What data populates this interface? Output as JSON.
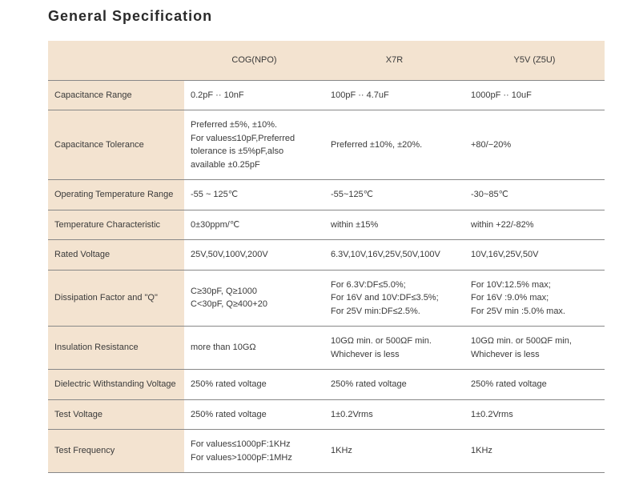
{
  "title": "General Specification",
  "colors": {
    "header_bg": "#f3e3d0",
    "border": "#888888",
    "text": "#3a3a3a",
    "page_bg": "#ffffff"
  },
  "columns": {
    "blank": "",
    "c1": "COG(NPO)",
    "c2": "X7R",
    "c3": "Y5V (Z5U)"
  },
  "rows": {
    "cap_range": {
      "label": "Capacitance Range",
      "c1": "0.2pF ·· 10nF",
      "c2": "100pF ·· 4.7uF",
      "c3": "1000pF ·· 10uF"
    },
    "cap_tol": {
      "label": "Capacitance Tolerance",
      "c1": "Preferred ±5%, ±10%.\nFor values≤10pF,Preferred\ntolerance is ±5%pF,also\navailable ±0.25pF",
      "c2": "Preferred ±10%, ±20%.",
      "c3": "+80/−20%"
    },
    "op_temp": {
      "label": "Operating Temperature Range",
      "c1": "-55 ~ 125℃",
      "c2": "-55~125℃",
      "c3": "-30~85℃"
    },
    "temp_char": {
      "label": "Temperature Characteristic",
      "c1": "0±30ppm/℃",
      "c2": "within ±15%",
      "c3": "within +22/-82%"
    },
    "rated_v": {
      "label": "Rated Voltage",
      "c1": "25V,50V,100V,200V",
      "c2": "6.3V,10V,16V,25V,50V,100V",
      "c3": "10V,16V,25V,50V"
    },
    "diss": {
      "label": "Dissipation Factor and \"Q\"",
      "c1": "C≥30pF, Q≥1000\nC<30pF, Q≥400+20",
      "c2": "For 6.3V:DF≤5.0%;\nFor 16V and 10V:DF≤3.5%;\nFor 25V min:DF≤2.5%.",
      "c3": "For 10V:12.5% max;\nFor 16V :9.0% max;\nFor 25V min :5.0% max."
    },
    "ins_res": {
      "label": "Insulation Resistance",
      "c1": "more than 10GΩ",
      "c2": "10GΩ min. or 500ΩF min.\nWhichever is less",
      "c3": "10GΩ min. or 500ΩF min,\nWhichever is less"
    },
    "diel": {
      "label": "Dielectric Withstanding Voltage",
      "c1": "250% rated voltage",
      "c2": "250% rated voltage",
      "c3": "250% rated voltage"
    },
    "test_v": {
      "label": "Test Voltage",
      "c1": "250% rated voltage",
      "c2": "1±0.2Vrms",
      "c3": "1±0.2Vrms"
    },
    "test_f": {
      "label": "Test Frequency",
      "c1": "For values≤1000pF:1KHz\nFor values>1000pF:1MHz",
      "c2": "1KHz",
      "c3": "1KHz"
    }
  }
}
